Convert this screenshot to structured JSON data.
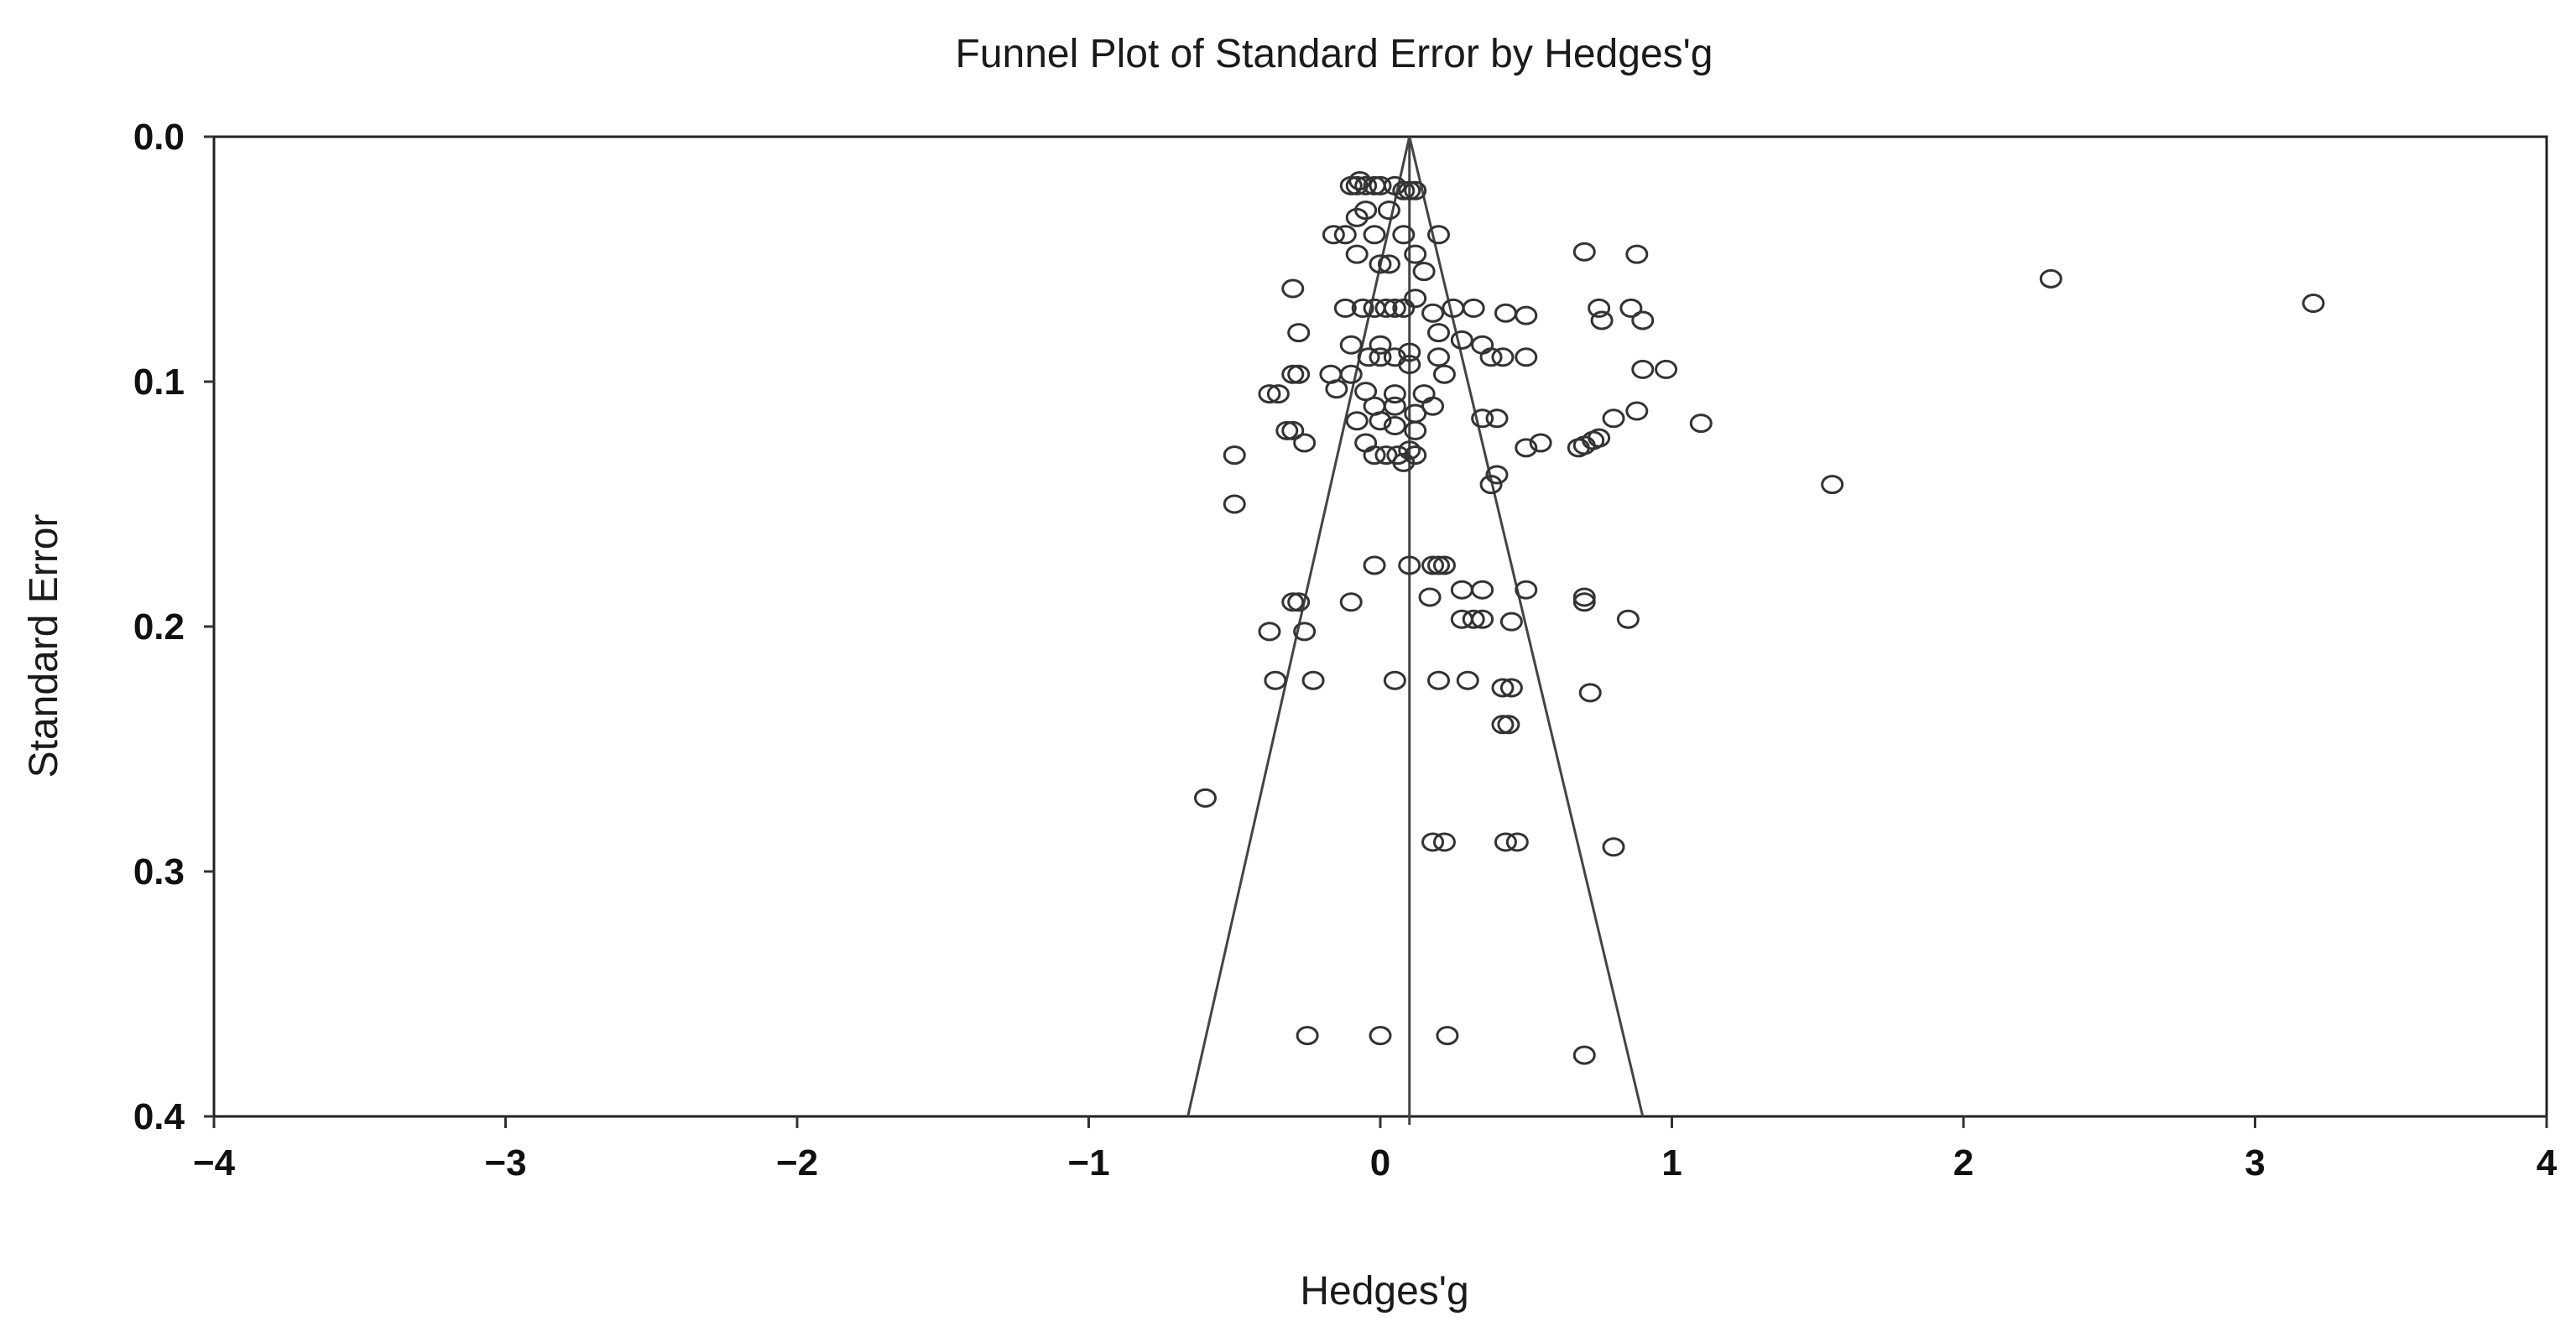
{
  "chart_data": {
    "type": "scatter",
    "title": "Funnel Plot of Standard Error by Hedges'g",
    "xlabel": "Hedges'g",
    "ylabel": "Standard Error",
    "xlim": [
      -4,
      4
    ],
    "ylim": [
      0.0,
      0.4
    ],
    "y_inverted": true,
    "x_ticks": [
      -4,
      -3,
      -2,
      -1,
      0,
      1,
      2,
      3,
      4
    ],
    "x_tick_labels": [
      "−4",
      "−3",
      "−2",
      "−1",
      "0",
      "1",
      "2",
      "3",
      "4"
    ],
    "y_ticks": [
      0.0,
      0.1,
      0.2,
      0.3,
      0.4
    ],
    "y_tick_labels": [
      "0.0",
      "0.1",
      "0.2",
      "0.3",
      "0.4"
    ],
    "grid": false,
    "summary_effect": 0.1,
    "funnel": {
      "apex": [
        0.1,
        0.0
      ],
      "left_base": [
        -0.66,
        0.4
      ],
      "right_base": [
        0.9,
        0.4
      ]
    },
    "colors": {
      "marker": "#333333",
      "line": "#444444",
      "frame": "#222222"
    },
    "points": [
      [
        -0.1,
        0.02
      ],
      [
        -0.08,
        0.02
      ],
      [
        -0.05,
        0.02
      ],
      [
        -0.02,
        0.02
      ],
      [
        0.0,
        0.02
      ],
      [
        0.05,
        0.02
      ],
      [
        0.08,
        0.022
      ],
      [
        0.1,
        0.022
      ],
      [
        0.12,
        0.022
      ],
      [
        -0.07,
        0.018
      ],
      [
        -0.05,
        0.03
      ],
      [
        0.03,
        0.03
      ],
      [
        -0.08,
        0.033
      ],
      [
        -0.16,
        0.04
      ],
      [
        -0.12,
        0.04
      ],
      [
        -0.02,
        0.04
      ],
      [
        0.08,
        0.04
      ],
      [
        0.2,
        0.04
      ],
      [
        -0.08,
        0.048
      ],
      [
        0.0,
        0.052
      ],
      [
        0.03,
        0.052
      ],
      [
        0.12,
        0.048
      ],
      [
        0.15,
        0.055
      ],
      [
        0.7,
        0.047
      ],
      [
        0.88,
        0.048
      ],
      [
        -0.3,
        0.062
      ],
      [
        -0.12,
        0.07
      ],
      [
        -0.06,
        0.07
      ],
      [
        -0.02,
        0.07
      ],
      [
        0.02,
        0.07
      ],
      [
        0.05,
        0.07
      ],
      [
        0.08,
        0.07
      ],
      [
        0.12,
        0.066
      ],
      [
        0.18,
        0.072
      ],
      [
        0.25,
        0.07
      ],
      [
        0.32,
        0.07
      ],
      [
        0.43,
        0.072
      ],
      [
        0.5,
        0.073
      ],
      [
        0.75,
        0.07
      ],
      [
        0.76,
        0.075
      ],
      [
        0.86,
        0.07
      ],
      [
        0.9,
        0.075
      ],
      [
        2.3,
        0.058
      ],
      [
        3.2,
        0.068
      ],
      [
        -0.28,
        0.08
      ],
      [
        -0.1,
        0.085
      ],
      [
        0.0,
        0.085
      ],
      [
        0.2,
        0.08
      ],
      [
        0.28,
        0.083
      ],
      [
        0.35,
        0.085
      ],
      [
        -0.04,
        0.09
      ],
      [
        0.0,
        0.09
      ],
      [
        0.05,
        0.09
      ],
      [
        0.1,
        0.088
      ],
      [
        0.2,
        0.09
      ],
      [
        0.38,
        0.09
      ],
      [
        0.42,
        0.09
      ],
      [
        0.5,
        0.09
      ],
      [
        -0.3,
        0.097
      ],
      [
        -0.28,
        0.097
      ],
      [
        -0.17,
        0.097
      ],
      [
        -0.1,
        0.097
      ],
      [
        0.1,
        0.093
      ],
      [
        0.22,
        0.097
      ],
      [
        0.9,
        0.095
      ],
      [
        0.98,
        0.095
      ],
      [
        -0.38,
        0.105
      ],
      [
        -0.35,
        0.105
      ],
      [
        -0.15,
        0.103
      ],
      [
        -0.05,
        0.104
      ],
      [
        0.05,
        0.105
      ],
      [
        0.15,
        0.105
      ],
      [
        -0.02,
        0.11
      ],
      [
        0.05,
        0.11
      ],
      [
        0.12,
        0.113
      ],
      [
        0.18,
        0.11
      ],
      [
        0.35,
        0.115
      ],
      [
        0.4,
        0.115
      ],
      [
        0.8,
        0.115
      ],
      [
        0.88,
        0.112
      ],
      [
        1.1,
        0.117
      ],
      [
        -0.08,
        0.116
      ],
      [
        0.0,
        0.116
      ],
      [
        0.05,
        0.118
      ],
      [
        0.12,
        0.12
      ],
      [
        -0.32,
        0.12
      ],
      [
        -0.3,
        0.12
      ],
      [
        -0.26,
        0.125
      ],
      [
        -0.05,
        0.125
      ],
      [
        0.1,
        0.128
      ],
      [
        0.5,
        0.127
      ],
      [
        0.55,
        0.125
      ],
      [
        0.68,
        0.127
      ],
      [
        0.7,
        0.126
      ],
      [
        0.73,
        0.124
      ],
      [
        0.75,
        0.123
      ],
      [
        -0.5,
        0.13
      ],
      [
        -0.02,
        0.13
      ],
      [
        0.02,
        0.13
      ],
      [
        0.06,
        0.13
      ],
      [
        0.08,
        0.133
      ],
      [
        0.12,
        0.13
      ],
      [
        0.4,
        0.138
      ],
      [
        0.38,
        0.142
      ],
      [
        1.55,
        0.142
      ],
      [
        -0.5,
        0.15
      ],
      [
        -0.02,
        0.175
      ],
      [
        0.1,
        0.175
      ],
      [
        0.18,
        0.175
      ],
      [
        0.2,
        0.175
      ],
      [
        0.22,
        0.175
      ],
      [
        -0.3,
        0.19
      ],
      [
        -0.28,
        0.19
      ],
      [
        -0.1,
        0.19
      ],
      [
        0.17,
        0.188
      ],
      [
        0.28,
        0.185
      ],
      [
        0.35,
        0.185
      ],
      [
        0.5,
        0.185
      ],
      [
        0.7,
        0.188
      ],
      [
        0.7,
        0.19
      ],
      [
        -0.38,
        0.202
      ],
      [
        -0.26,
        0.202
      ],
      [
        0.28,
        0.197
      ],
      [
        0.32,
        0.197
      ],
      [
        0.35,
        0.197
      ],
      [
        0.45,
        0.198
      ],
      [
        0.85,
        0.197
      ],
      [
        -0.36,
        0.222
      ],
      [
        -0.23,
        0.222
      ],
      [
        0.05,
        0.222
      ],
      [
        0.2,
        0.222
      ],
      [
        0.3,
        0.222
      ],
      [
        0.42,
        0.225
      ],
      [
        0.45,
        0.225
      ],
      [
        0.72,
        0.227
      ],
      [
        0.42,
        0.24
      ],
      [
        0.44,
        0.24
      ],
      [
        -0.6,
        0.27
      ],
      [
        0.18,
        0.288
      ],
      [
        0.22,
        0.288
      ],
      [
        0.43,
        0.288
      ],
      [
        0.47,
        0.288
      ],
      [
        0.8,
        0.29
      ],
      [
        -0.25,
        0.367
      ],
      [
        0.0,
        0.367
      ],
      [
        0.23,
        0.367
      ],
      [
        0.7,
        0.375
      ]
    ]
  }
}
